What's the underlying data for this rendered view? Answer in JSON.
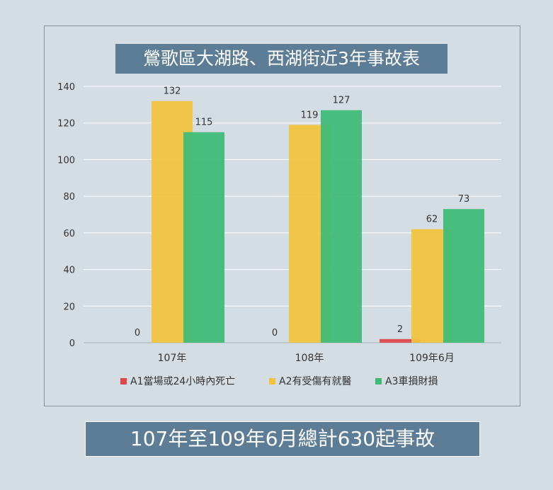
{
  "summary": "107年至109年6月總計630起事故",
  "chart_data": {
    "type": "bar",
    "title": "鶯歌區大湖路、西湖街近3年事故表",
    "categories": [
      "107年",
      "108年",
      "109年6月"
    ],
    "series": [
      {
        "name": "A1當場或24小時內死亡",
        "values": [
          0,
          0,
          2
        ],
        "color": "#e0474c"
      },
      {
        "name": "A2有受傷有就醫",
        "values": [
          132,
          119,
          62
        ],
        "color": "#f2c43d"
      },
      {
        "name": "A3車損財損",
        "values": [
          115,
          127,
          73
        ],
        "color": "#3dbb76"
      }
    ],
    "ylim": [
      0,
      140
    ],
    "yticks": [
      0,
      20,
      40,
      60,
      80,
      100,
      120,
      140
    ],
    "grid": true,
    "legend": "bottom"
  }
}
